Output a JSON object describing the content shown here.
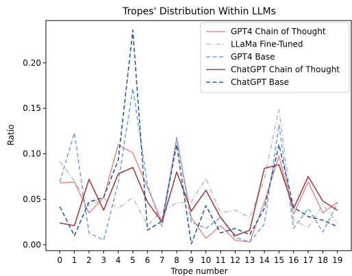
{
  "chart_data": {
    "type": "line",
    "title": "Tropes' Distribution Within LLMs",
    "xlabel": "Trope number",
    "ylabel": "Ratio",
    "x": [
      0,
      1,
      2,
      3,
      4,
      5,
      6,
      7,
      8,
      9,
      10,
      11,
      12,
      13,
      14,
      15,
      16,
      17,
      18,
      19
    ],
    "xticks": [
      "0",
      "1",
      "2",
      "3",
      "4",
      "5",
      "6",
      "7",
      "8",
      "9",
      "10",
      "11",
      "12",
      "13",
      "14",
      "15",
      "16",
      "17",
      "18",
      "19"
    ],
    "yticks": [
      "0.00",
      "0.05",
      "0.10",
      "0.15",
      "0.20"
    ],
    "ytick_values": [
      0,
      0.05,
      0.1,
      0.15,
      0.2
    ],
    "xlim": [
      -0.95,
      19.95
    ],
    "ylim": [
      -0.0065,
      0.2465
    ],
    "grid": false,
    "legend_position": "top-right",
    "series": [
      {
        "name": "GPT4 Chain of Thought",
        "color": "#f08c8c",
        "style": "solid",
        "values": [
          0.068,
          0.069,
          0.035,
          0.052,
          0.11,
          0.101,
          0.063,
          0.025,
          0.117,
          0.03,
          0.007,
          0.021,
          0.005,
          0.003,
          0.047,
          0.098,
          0.034,
          0.069,
          0.035,
          0.047
        ]
      },
      {
        "name": "LLaMa Fine-Tuned",
        "color": "#bdbdbd",
        "style": "dashdot",
        "values": [
          0.092,
          0.07,
          0.043,
          0.051,
          0.04,
          0.052,
          0.021,
          0.037,
          0.046,
          0.047,
          0.073,
          0.035,
          0.038,
          0.03,
          0.072,
          0.149,
          0.027,
          0.019,
          0.044,
          0.024
        ]
      },
      {
        "name": "GPT4 Base",
        "color": "#6fa8ea",
        "style": "dashed",
        "values": [
          0.069,
          0.123,
          0.013,
          0.005,
          0.068,
          0.172,
          0.066,
          0.02,
          0.118,
          0.025,
          0.018,
          0.03,
          0.008,
          0.003,
          0.023,
          0.132,
          0.018,
          0.04,
          0.014,
          0.046
        ]
      },
      {
        "name": "ChatGPT Chain of Thought",
        "color": "#b03a3a",
        "style": "solid",
        "values": [
          0.024,
          0.021,
          0.072,
          0.038,
          0.078,
          0.085,
          0.047,
          0.025,
          0.08,
          0.037,
          0.06,
          0.03,
          0.01,
          0.016,
          0.084,
          0.088,
          0.04,
          0.075,
          0.048,
          0.038
        ]
      },
      {
        "name": "ChatGPT Base",
        "color": "#1f57aa",
        "style": "dashed",
        "values": [
          0.042,
          0.01,
          0.047,
          0.052,
          0.093,
          0.236,
          0.016,
          0.026,
          0.11,
          0.001,
          0.043,
          0.013,
          0.018,
          0.011,
          0.04,
          0.11,
          0.041,
          0.031,
          0.027,
          0.02
        ]
      }
    ]
  }
}
